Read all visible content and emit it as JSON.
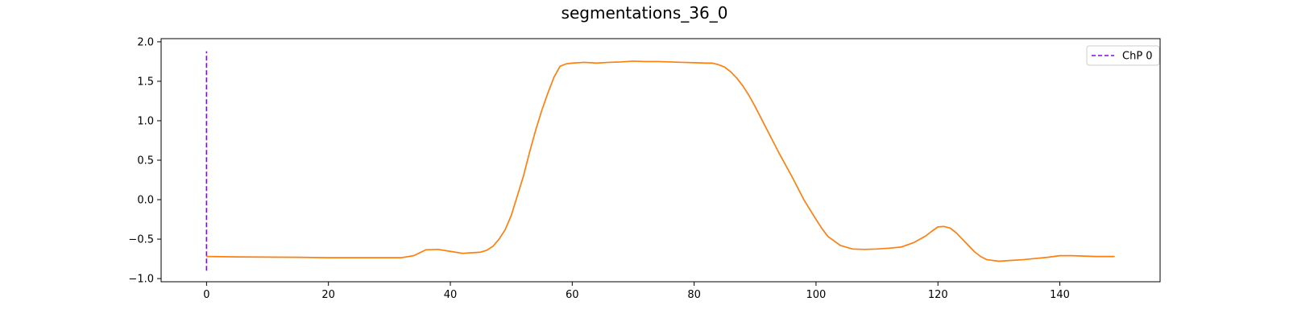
{
  "chart_data": {
    "type": "line",
    "title": "segmentations_36_0",
    "xlabel": "",
    "ylabel": "",
    "xlim": [
      -7.45,
      156.45
    ],
    "ylim": [
      -1.04,
      2.04
    ],
    "x_ticks": [
      0,
      20,
      40,
      60,
      80,
      100,
      120,
      140
    ],
    "y_ticks": [
      -1.0,
      -0.5,
      0.0,
      0.5,
      1.0,
      1.5,
      2.0
    ],
    "y_tick_labels": [
      "−1.0",
      "−0.5",
      "0.0",
      "0.5",
      "1.0",
      "1.5",
      "2.0"
    ],
    "grid": false,
    "legend": {
      "placement": "top-right",
      "entries": [
        {
          "label": "ChP 0",
          "color": "#8a00ff",
          "style": "dashed"
        }
      ]
    },
    "changepoints": [
      {
        "name": "ChP 0",
        "x": 0,
        "y_range": [
          -0.9,
          1.88
        ],
        "color": "#8a00ff"
      }
    ],
    "series": [
      {
        "color": "#ff7f0e",
        "points": [
          [
            0,
            -0.72
          ],
          [
            5,
            -0.725
          ],
          [
            10,
            -0.728
          ],
          [
            15,
            -0.73
          ],
          [
            20,
            -0.735
          ],
          [
            25,
            -0.735
          ],
          [
            30,
            -0.735
          ],
          [
            32,
            -0.735
          ],
          [
            34,
            -0.71
          ],
          [
            36,
            -0.635
          ],
          [
            38,
            -0.63
          ],
          [
            40,
            -0.655
          ],
          [
            42,
            -0.68
          ],
          [
            44,
            -0.67
          ],
          [
            45,
            -0.665
          ],
          [
            46,
            -0.64
          ],
          [
            47,
            -0.59
          ],
          [
            48,
            -0.5
          ],
          [
            49,
            -0.38
          ],
          [
            50,
            -0.2
          ],
          [
            51,
            0.05
          ],
          [
            52,
            0.3
          ],
          [
            53,
            0.6
          ],
          [
            54,
            0.88
          ],
          [
            55,
            1.13
          ],
          [
            56,
            1.35
          ],
          [
            57,
            1.55
          ],
          [
            58,
            1.69
          ],
          [
            59,
            1.72
          ],
          [
            60,
            1.73
          ],
          [
            62,
            1.74
          ],
          [
            64,
            1.73
          ],
          [
            66,
            1.74
          ],
          [
            68,
            1.745
          ],
          [
            70,
            1.755
          ],
          [
            72,
            1.75
          ],
          [
            74,
            1.75
          ],
          [
            76,
            1.745
          ],
          [
            78,
            1.74
          ],
          [
            80,
            1.735
          ],
          [
            82,
            1.73
          ],
          [
            83,
            1.73
          ],
          [
            84,
            1.71
          ],
          [
            85,
            1.68
          ],
          [
            86,
            1.62
          ],
          [
            87,
            1.54
          ],
          [
            88,
            1.44
          ],
          [
            89,
            1.32
          ],
          [
            90,
            1.18
          ],
          [
            92,
            0.88
          ],
          [
            94,
            0.58
          ],
          [
            96,
            0.3
          ],
          [
            98,
            0.0
          ],
          [
            100,
            -0.25
          ],
          [
            101,
            -0.37
          ],
          [
            102,
            -0.47
          ],
          [
            104,
            -0.58
          ],
          [
            106,
            -0.625
          ],
          [
            108,
            -0.63
          ],
          [
            110,
            -0.625
          ],
          [
            112,
            -0.615
          ],
          [
            114,
            -0.6
          ],
          [
            116,
            -0.545
          ],
          [
            118,
            -0.46
          ],
          [
            119,
            -0.4
          ],
          [
            120,
            -0.345
          ],
          [
            121,
            -0.34
          ],
          [
            122,
            -0.36
          ],
          [
            123,
            -0.42
          ],
          [
            124,
            -0.5
          ],
          [
            125,
            -0.58
          ],
          [
            126,
            -0.66
          ],
          [
            127,
            -0.72
          ],
          [
            128,
            -0.76
          ],
          [
            130,
            -0.78
          ],
          [
            132,
            -0.77
          ],
          [
            134,
            -0.76
          ],
          [
            136,
            -0.745
          ],
          [
            138,
            -0.73
          ],
          [
            140,
            -0.71
          ],
          [
            142,
            -0.71
          ],
          [
            144,
            -0.715
          ],
          [
            146,
            -0.72
          ],
          [
            148,
            -0.72
          ],
          [
            149,
            -0.72
          ]
        ]
      }
    ]
  }
}
